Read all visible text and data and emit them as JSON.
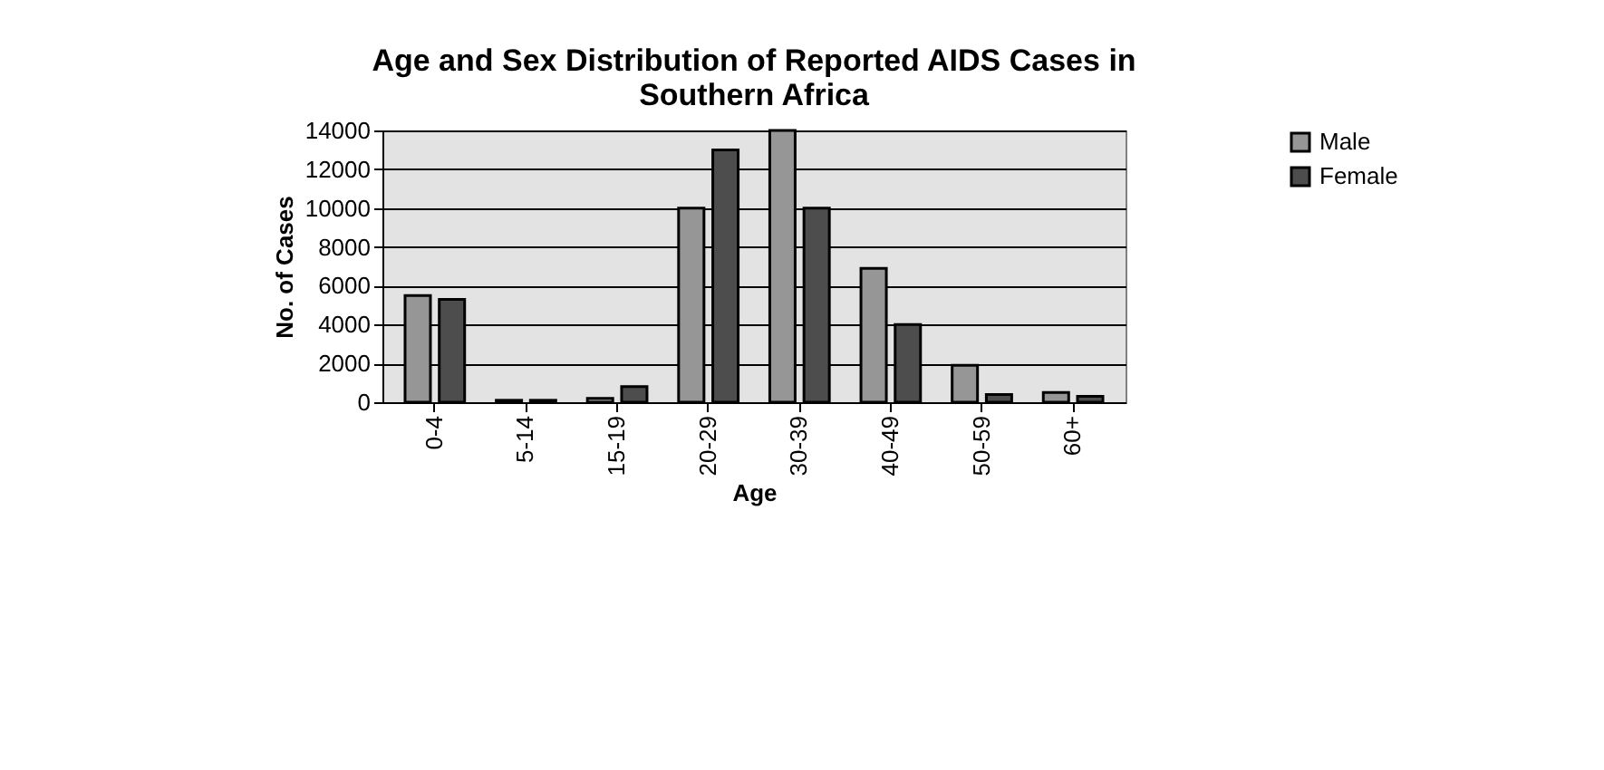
{
  "chart_data": {
    "type": "bar",
    "title": [
      "Age and Sex Distribution of Reported AIDS Cases in",
      "Southern Africa"
    ],
    "xlabel": "Age",
    "ylabel": "No. of Cases",
    "categories": [
      "0-4",
      "5-14",
      "15-19",
      "20-29",
      "30-39",
      "40-49",
      "50-59",
      "60+"
    ],
    "series": [
      {
        "name": "Male",
        "color": "#969696",
        "values": [
          5500,
          100,
          200,
          10000,
          14000,
          6900,
          1900,
          500
        ]
      },
      {
        "name": "Female",
        "color": "#4d4d4d",
        "values": [
          5300,
          100,
          800,
          13000,
          10000,
          4000,
          400,
          300
        ]
      }
    ],
    "ylim": [
      0,
      14000
    ],
    "yticks": [
      0,
      2000,
      4000,
      6000,
      8000,
      10000,
      12000,
      14000
    ],
    "grid": "y",
    "legend": "right"
  }
}
